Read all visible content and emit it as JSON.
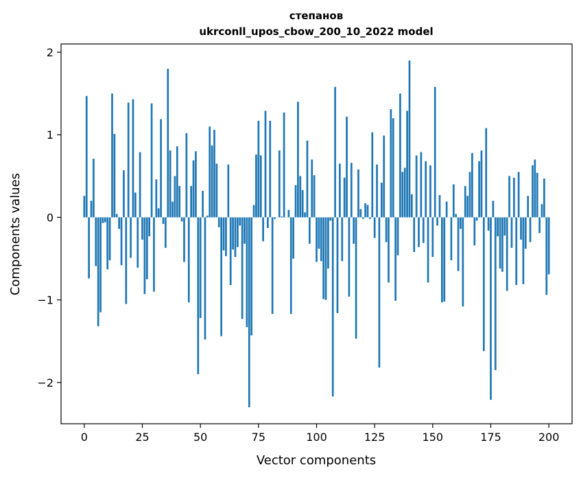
{
  "chart_data": {
    "type": "bar",
    "title": "степанов",
    "subtitle": "ukrconll_upos_cbow_200_10_2022 model",
    "xlabel": "Vector components",
    "ylabel": "Components values",
    "xlim": [
      -10,
      210
    ],
    "ylim": [
      -2.5,
      2.1
    ],
    "xticks": [
      0,
      25,
      50,
      75,
      100,
      125,
      150,
      175,
      200
    ],
    "yticks": [
      -2,
      -1,
      0,
      1,
      2
    ],
    "ytick_labels": [
      "−2",
      "−1",
      "0",
      "1",
      "2"
    ],
    "grid": false,
    "bar_color": "#1f77b4",
    "values": [
      0.26,
      1.47,
      -0.74,
      0.2,
      0.71,
      -0.59,
      -1.32,
      -1.15,
      -0.07,
      -0.06,
      -0.63,
      -0.52,
      1.5,
      1.01,
      0.04,
      -0.14,
      -0.58,
      0.57,
      -1.05,
      1.39,
      -0.49,
      1.43,
      0.3,
      -0.61,
      0.79,
      -0.27,
      -0.93,
      -0.75,
      -0.23,
      1.38,
      -0.9,
      0.46,
      0.11,
      1.19,
      -0.08,
      -0.37,
      1.8,
      0.81,
      0.19,
      0.5,
      0.86,
      0.38,
      -0.05,
      -0.54,
      1.02,
      -1.03,
      0.38,
      0.69,
      0.8,
      -1.9,
      -1.22,
      0.32,
      -1.48,
      0.02,
      1.1,
      0.87,
      1.06,
      0.65,
      -0.12,
      -1.44,
      -0.4,
      -0.47,
      0.64,
      -0.82,
      -0.39,
      -0.48,
      -0.36,
      -0.1,
      -1.23,
      -0.32,
      -1.33,
      -2.3,
      -1.43,
      0.15,
      0.76,
      1.17,
      0.75,
      -0.29,
      1.29,
      -0.13,
      1.17,
      -1.17,
      -0.02,
      0.0,
      0.81,
      0.01,
      1.27,
      0.0,
      0.09,
      -1.17,
      -0.5,
      0.39,
      1.4,
      0.5,
      0.33,
      0.06,
      0.93,
      -0.32,
      0.7,
      0.51,
      -0.54,
      -0.38,
      -0.53,
      -0.99,
      -1.0,
      -0.62,
      -0.04,
      -2.17,
      1.58,
      -1.16,
      0.65,
      -0.53,
      0.48,
      1.22,
      -0.96,
      0.66,
      -0.32,
      -1.47,
      0.58,
      0.1,
      -0.02,
      0.17,
      0.15,
      -0.02,
      1.03,
      -0.25,
      0.64,
      -1.82,
      0.42,
      0.99,
      -0.3,
      -0.79,
      1.31,
      1.2,
      -1.01,
      -0.46,
      1.5,
      0.55,
      0.6,
      1.29,
      1.9,
      0.28,
      -0.42,
      0.75,
      -0.36,
      0.79,
      -0.31,
      0.68,
      -0.79,
      0.63,
      -0.48,
      1.58,
      -0.1,
      0.27,
      -1.03,
      -1.02,
      0.19,
      0.0,
      -0.52,
      0.4,
      0.04,
      -0.65,
      -0.14,
      -1.08,
      0.38,
      0.26,
      0.55,
      0.78,
      -0.34,
      -0.04,
      0.68,
      0.81,
      -1.62,
      1.08,
      -0.16,
      -2.21,
      0.2,
      -1.85,
      -0.23,
      -0.62,
      -0.66,
      -0.22,
      -0.89,
      0.5,
      -0.37,
      0.48,
      -0.82,
      0.55,
      -0.27,
      -0.81,
      -0.38,
      0.26,
      -0.3,
      0.63,
      0.7,
      0.54,
      -0.19,
      0.16,
      0.47,
      -0.94,
      -0.69
    ]
  }
}
